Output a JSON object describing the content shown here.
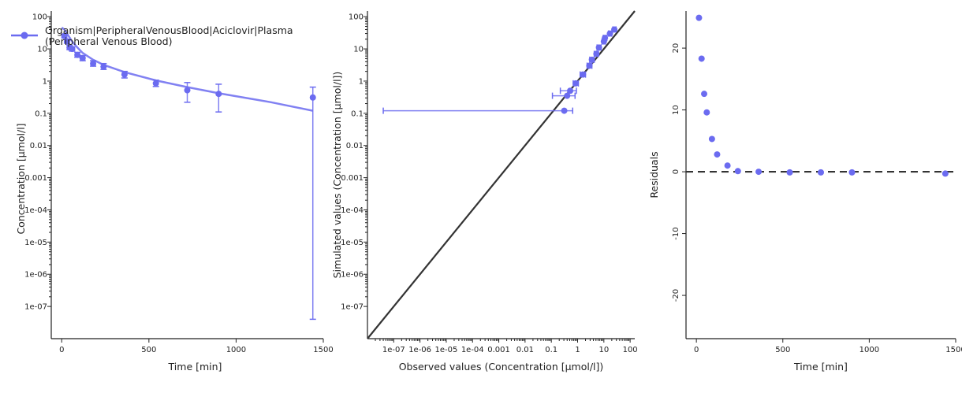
{
  "chart_data": [
    {
      "type": "line",
      "panel": "time-profile",
      "xlabel": "Time [min]",
      "ylabel": "Concentration [µmol/l]",
      "y_scale": "log",
      "xlim": [
        -60,
        1500
      ],
      "ylim": [
        1e-08,
        150
      ],
      "x_ticks": [
        0,
        500,
        1000,
        1500
      ],
      "y_ticks": [
        1e-07,
        1e-06,
        1e-05,
        0.0001,
        0.001,
        0.01,
        0.1,
        1,
        10,
        100
      ],
      "y_tick_labels": [
        "1e-07",
        "1e-06",
        "1e-05",
        "1e-04",
        "0.001",
        "0.01",
        "0.1",
        "1",
        "10",
        "100"
      ],
      "legend": {
        "placement": "top-left",
        "label_lines": [
          "Organism|PeripheralVenousBlood|Aciclovir|Plasma",
          "(Peripheral Venous Blood)"
        ]
      },
      "series": [
        {
          "name": "Organism|PeripheralVenousBlood|Aciclovir|Plasma (Peripheral Venous Blood)",
          "color": "#6b6bf0",
          "observed": {
            "x": [
              15,
              30,
              45,
              60,
              90,
              120,
              180,
              240,
              360,
              540,
              720,
              900,
              1440
            ],
            "y": [
              25,
              17,
              11,
              10,
              6.5,
              5.2,
              3.5,
              2.8,
              1.6,
              0.85,
              0.52,
              0.4,
              0.31
            ],
            "y_low": [
              22,
              15,
              9.5,
              8.5,
              5.5,
              4.3,
              2.9,
              2.3,
              1.25,
              0.68,
              0.22,
              0.11,
              4e-08
            ],
            "y_high": [
              29,
              20,
              13,
              11.5,
              7.8,
              6.2,
              4.3,
              3.5,
              2.0,
              1.07,
              0.9,
              0.8,
              0.65
            ]
          },
          "simulated": {
            "x": [
              0,
              15,
              30,
              60,
              90,
              120,
              180,
              240,
              360,
              540,
              720,
              900,
              1200,
              1440
            ],
            "y": [
              46,
              40,
              30,
              17,
              11,
              7.5,
              4.6,
              3.2,
              1.9,
              1.05,
              0.65,
              0.42,
              0.22,
              0.12
            ]
          }
        }
      ]
    },
    {
      "type": "scatter",
      "panel": "observed-vs-simulated",
      "xlabel": "Observed values (Concentration [µmol/l])",
      "ylabel": "Simulated values (Concentration [µmol/l])",
      "x_scale": "log",
      "y_scale": "log",
      "xlim": [
        1e-08,
        150
      ],
      "ylim": [
        1e-08,
        150
      ],
      "x_ticks": [
        1e-07,
        1e-06,
        1e-05,
        0.0001,
        0.001,
        0.01,
        0.1,
        1,
        10,
        100
      ],
      "x_tick_labels": [
        "1e-07",
        "1e-06",
        "1e-05",
        "1e-04",
        "0.001",
        "0.01",
        "0.1",
        "1",
        "10",
        "100"
      ],
      "y_ticks": [
        1e-07,
        1e-06,
        1e-05,
        0.0001,
        0.001,
        0.01,
        0.1,
        1,
        10,
        100
      ],
      "y_tick_labels": [
        "1e-07",
        "1e-06",
        "1e-05",
        "1e-04",
        "0.001",
        "0.01",
        "0.1",
        "1",
        "10",
        "100"
      ],
      "identity_line": true,
      "points": {
        "observed": [
          0.31,
          0.4,
          0.52,
          0.85,
          1.6,
          2.8,
          3.5,
          5.2,
          6.5,
          10,
          11,
          17,
          25
        ],
        "observed_low": [
          4e-08,
          0.11,
          0.22,
          0.68,
          1.25,
          2.3,
          2.9,
          4.3,
          5.5,
          8.5,
          9.5,
          15,
          22
        ],
        "observed_high": [
          0.65,
          0.8,
          0.9,
          1.07,
          2.0,
          3.5,
          4.3,
          6.2,
          7.8,
          11.5,
          13,
          20,
          29
        ],
        "simulated": [
          0.12,
          0.35,
          0.5,
          0.85,
          1.6,
          3.0,
          4.6,
          7.0,
          11,
          17,
          22,
          30,
          40
        ]
      }
    },
    {
      "type": "scatter",
      "panel": "residuals",
      "xlabel": "Time [min]",
      "ylabel": "Residuals",
      "xlim": [
        -60,
        1500
      ],
      "ylim": [
        -27,
        26
      ],
      "x_ticks": [
        0,
        500,
        1000,
        1500
      ],
      "y_ticks": [
        -20,
        -10,
        0,
        10,
        20
      ],
      "zero_line": "dashed",
      "x": [
        15,
        30,
        45,
        60,
        90,
        120,
        180,
        240,
        360,
        540,
        720,
        900,
        1440
      ],
      "y": [
        24.9,
        18.3,
        12.6,
        9.6,
        5.3,
        2.8,
        1.0,
        0.1,
        0.0,
        -0.1,
        -0.1,
        -0.1,
        -0.3
      ]
    }
  ]
}
